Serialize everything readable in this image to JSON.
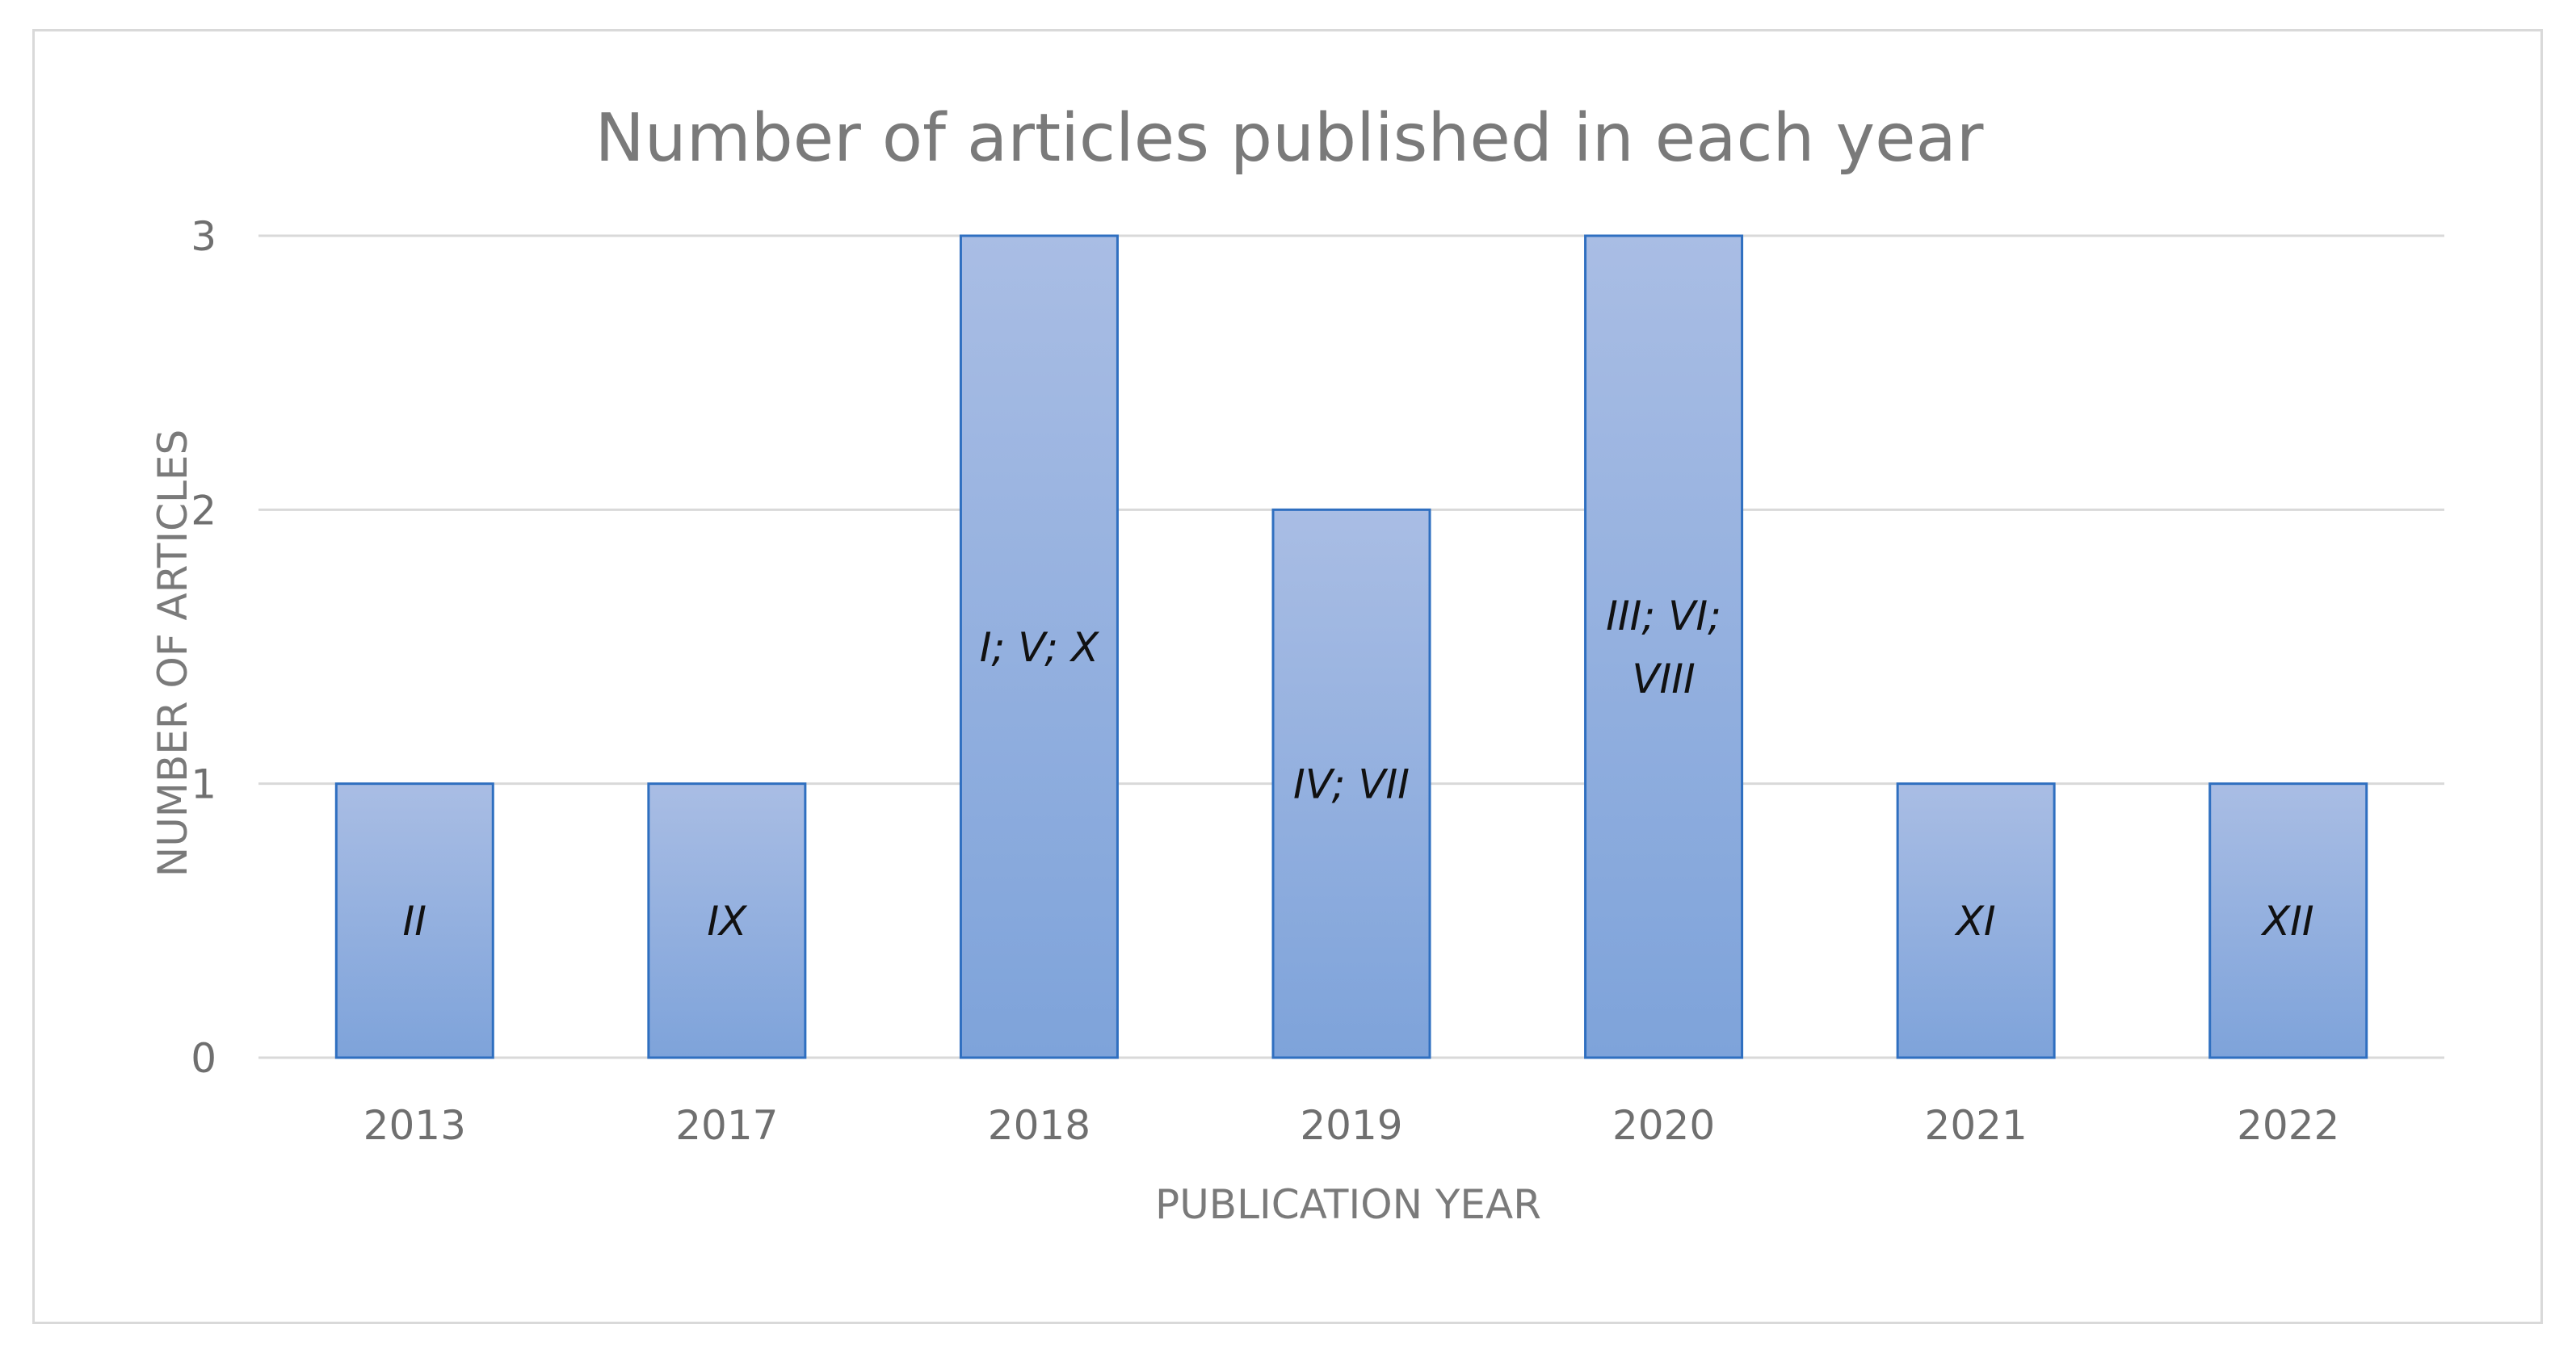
{
  "chart_data": {
    "type": "bar",
    "title": "Number of articles published in each year",
    "xlabel": "PUBLICATION YEAR",
    "ylabel": "NUMBER OF ARTICLES",
    "categories": [
      "2013",
      "2017",
      "2018",
      "2019",
      "2020",
      "2021",
      "2022"
    ],
    "values": [
      1,
      1,
      3,
      2,
      3,
      1,
      1
    ],
    "bar_labels": [
      [
        "II"
      ],
      [
        "IX"
      ],
      [
        "I; V; X"
      ],
      [
        "IV; VII"
      ],
      [
        "III; VI;",
        "VIII"
      ],
      [
        "XI"
      ],
      [
        "XII"
      ]
    ],
    "y_ticks": [
      "0",
      "1",
      "2",
      "3"
    ],
    "ylim": [
      0,
      3
    ],
    "grid": true,
    "legend": "none",
    "colors": {
      "bar_fill_top": "#a9bde4",
      "bar_fill_bottom": "#7ea3da",
      "bar_stroke": "#2f6fc0",
      "gridline": "#d9d9d9",
      "text": "#7a7a7a"
    }
  }
}
